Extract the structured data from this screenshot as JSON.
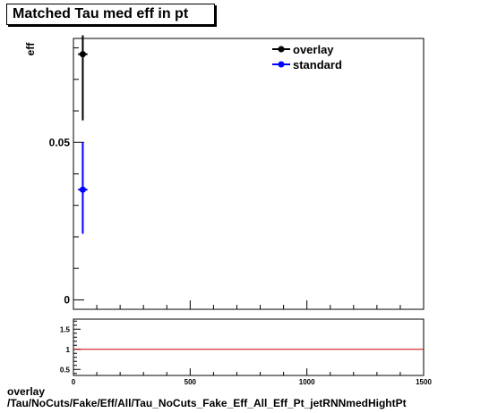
{
  "title": "Matched Tau med eff in pt",
  "footer": {
    "line1": "overlay",
    "line2": "/Tau/NoCuts/Fake/Eff/All/Tau_NoCuts_Fake_Eff_All_Eff_Pt_jetRNNmedHightPt"
  },
  "chart_data": [
    {
      "type": "scatter",
      "title": "Matched Tau med eff in pt",
      "ylabel": "eff",
      "xlim": [
        0,
        1500
      ],
      "ylim": [
        -0.003,
        0.083
      ],
      "yticks": [
        {
          "value": 0,
          "label": "0"
        },
        {
          "value": 0.05,
          "label": "0.05"
        }
      ],
      "legend_placement": "top-right",
      "series": [
        {
          "name": "overlay",
          "color": "#000000",
          "x": [
            40
          ],
          "y": [
            0.078
          ],
          "xerr": [
            20
          ],
          "yerr_low": [
            0.021
          ],
          "yerr_high": [
            0.006
          ]
        },
        {
          "name": "standard",
          "color": "#0000ff",
          "x": [
            40
          ],
          "y": [
            0.035
          ],
          "xerr": [
            20
          ],
          "yerr_low": [
            0.014
          ],
          "yerr_high": [
            0.015
          ]
        }
      ]
    },
    {
      "type": "line",
      "xlim": [
        0,
        1500
      ],
      "ylim": [
        0.35,
        1.75
      ],
      "xticks": [
        {
          "value": 0,
          "label": "0"
        },
        {
          "value": 500,
          "label": "500"
        },
        {
          "value": 1000,
          "label": "1000"
        },
        {
          "value": 1500,
          "label": "1500"
        }
      ],
      "yticks": [
        {
          "value": 0.5,
          "label": "0.5"
        },
        {
          "value": 1,
          "label": "1"
        },
        {
          "value": 1.5,
          "label": "1.5"
        }
      ],
      "reference_line": {
        "y": 1,
        "color": "#cc0000"
      }
    }
  ]
}
